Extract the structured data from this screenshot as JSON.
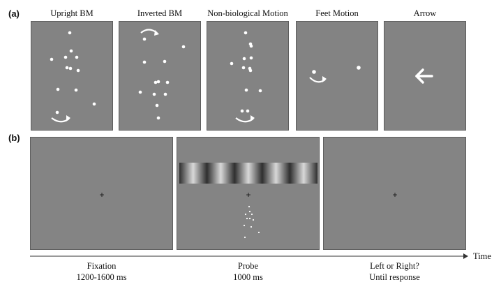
{
  "panel_a": {
    "label": "(a)",
    "conditions": [
      {
        "title": "Upright BM"
      },
      {
        "title": "Inverted BM"
      },
      {
        "title": "Non-biological Motion"
      },
      {
        "title": "Feet Motion"
      },
      {
        "title": "Arrow"
      }
    ]
  },
  "panel_b": {
    "label": "(b)",
    "screens": [
      {
        "caption_line1": "Fixation",
        "caption_line2": "1200-1600 ms",
        "fixation": "+"
      },
      {
        "caption_line1": "Probe",
        "caption_line2": "1000 ms",
        "fixation": "+"
      },
      {
        "caption_line1": "Left or Right?",
        "caption_line2": "Until response",
        "fixation": "+"
      }
    ],
    "time_axis_label": "Time"
  },
  "colors": {
    "panel_background": "#838383",
    "dot": "#ffffff",
    "text": "#111111"
  }
}
